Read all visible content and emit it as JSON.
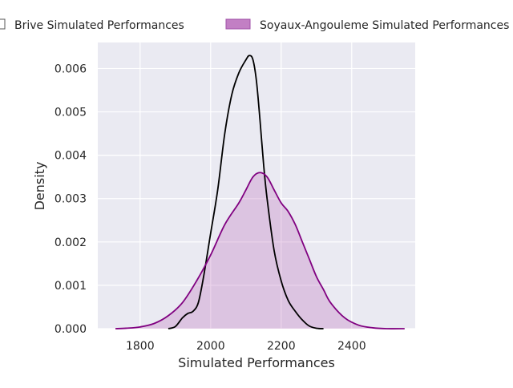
{
  "chart_data": {
    "type": "area",
    "title": "",
    "xlabel": "Simulated Performances",
    "ylabel": "Density",
    "xlim": [
      1680,
      2580
    ],
    "ylim": [
      0,
      0.0066
    ],
    "x_ticks": [
      1800,
      2000,
      2200,
      2400
    ],
    "y_ticks": [
      0.0,
      0.001,
      0.002,
      0.003,
      0.004,
      0.005,
      0.006
    ],
    "y_tick_labels": [
      "0.000",
      "0.001",
      "0.002",
      "0.003",
      "0.004",
      "0.005",
      "0.006"
    ],
    "grid": true,
    "legend_position": "top, outside plot area",
    "series": [
      {
        "name": "Brive Simulated Performances",
        "color": "#000000",
        "fill": "none",
        "x": [
          1880,
          1900,
          1920,
          1935,
          1950,
          1965,
          1980,
          2000,
          2020,
          2040,
          2060,
          2080,
          2100,
          2110,
          2120,
          2130,
          2140,
          2150,
          2160,
          2180,
          2200,
          2220,
          2240,
          2260,
          2280,
          2300,
          2320
        ],
        "y": [
          0.0,
          5e-05,
          0.00025,
          0.00035,
          0.0004,
          0.0006,
          0.0012,
          0.0022,
          0.0032,
          0.0045,
          0.0054,
          0.0059,
          0.0062,
          0.0063,
          0.0062,
          0.0057,
          0.0048,
          0.0038,
          0.003,
          0.0018,
          0.0011,
          0.00065,
          0.0004,
          0.0002,
          6e-05,
          1e-05,
          0.0
        ]
      },
      {
        "name": "Soyaux-Angouleme Simulated Performances",
        "color": "#800080",
        "fill": "#c27fc4",
        "x": [
          1730,
          1760,
          1800,
          1840,
          1880,
          1920,
          1960,
          2000,
          2040,
          2080,
          2100,
          2120,
          2140,
          2160,
          2180,
          2200,
          2220,
          2240,
          2260,
          2280,
          2300,
          2320,
          2340,
          2380,
          2420,
          2460,
          2500,
          2550
        ],
        "y": [
          0.0,
          1e-05,
          4e-05,
          0.00012,
          0.0003,
          0.0006,
          0.0011,
          0.0017,
          0.0024,
          0.0029,
          0.0032,
          0.0035,
          0.0036,
          0.0035,
          0.0032,
          0.0029,
          0.0027,
          0.0024,
          0.002,
          0.0016,
          0.0012,
          0.0009,
          0.0006,
          0.00025,
          8e-05,
          2e-05,
          0.0,
          0.0
        ]
      }
    ]
  }
}
